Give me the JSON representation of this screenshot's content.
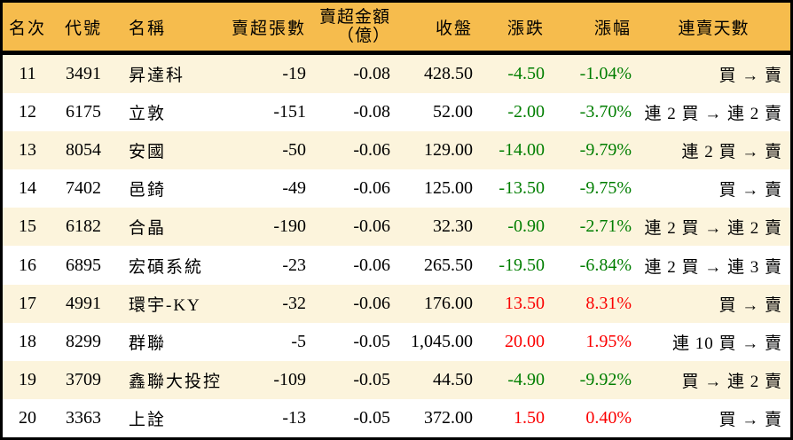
{
  "colors": {
    "header_bg": "#f6bc4d",
    "row_alt_bg": "#fcf4dc",
    "row_bg": "#ffffff",
    "up_red": "#fb0000",
    "down_green": "#007e00",
    "border_black": "#000000",
    "text_black": "#000000"
  },
  "header": {
    "rank": "名次",
    "code": "代號",
    "name": "名稱",
    "sell_volume": "賣超張數",
    "sell_amount_line1": "賣超金額",
    "sell_amount_line2": "（億）",
    "close": "收盤",
    "change": "漲跌",
    "change_pct": "漲幅",
    "streak": "連賣天數"
  },
  "chart_data": {
    "type": "table",
    "columns": [
      "名次",
      "代號",
      "名稱",
      "賣超張數",
      "賣超金額（億）",
      "收盤",
      "漲跌",
      "漲幅",
      "連賣天數"
    ],
    "rows": [
      {
        "rank": "11",
        "code": "3491",
        "name": "昇達科",
        "sell_volume": "-19",
        "sell_amount": "-0.08",
        "close": "428.50",
        "change": "-4.50",
        "change_pct": "-1.04%",
        "streak": "買 → 賣",
        "trend": "down"
      },
      {
        "rank": "12",
        "code": "6175",
        "name": "立敦",
        "sell_volume": "-151",
        "sell_amount": "-0.08",
        "close": "52.00",
        "change": "-2.00",
        "change_pct": "-3.70%",
        "streak": "連 2 買 → 連 2 賣",
        "trend": "down"
      },
      {
        "rank": "13",
        "code": "8054",
        "name": "安國",
        "sell_volume": "-50",
        "sell_amount": "-0.06",
        "close": "129.00",
        "change": "-14.00",
        "change_pct": "-9.79%",
        "streak": "連 2 買 → 賣",
        "trend": "down"
      },
      {
        "rank": "14",
        "code": "7402",
        "name": "邑錡",
        "sell_volume": "-49",
        "sell_amount": "-0.06",
        "close": "125.00",
        "change": "-13.50",
        "change_pct": "-9.75%",
        "streak": "買 → 賣",
        "trend": "down"
      },
      {
        "rank": "15",
        "code": "6182",
        "name": "合晶",
        "sell_volume": "-190",
        "sell_amount": "-0.06",
        "close": "32.30",
        "change": "-0.90",
        "change_pct": "-2.71%",
        "streak": "連 2 買 → 連 2 賣",
        "trend": "down"
      },
      {
        "rank": "16",
        "code": "6895",
        "name": "宏碩系統",
        "sell_volume": "-23",
        "sell_amount": "-0.06",
        "close": "265.50",
        "change": "-19.50",
        "change_pct": "-6.84%",
        "streak": "連 2 買 → 連 3 賣",
        "trend": "down"
      },
      {
        "rank": "17",
        "code": "4991",
        "name": "環宇-KY",
        "sell_volume": "-32",
        "sell_amount": "-0.06",
        "close": "176.00",
        "change": "13.50",
        "change_pct": "8.31%",
        "streak": "買 → 賣",
        "trend": "up"
      },
      {
        "rank": "18",
        "code": "8299",
        "name": "群聯",
        "sell_volume": "-5",
        "sell_amount": "-0.05",
        "close": "1,045.00",
        "change": "20.00",
        "change_pct": "1.95%",
        "streak": "連 10 買 → 賣",
        "trend": "up"
      },
      {
        "rank": "19",
        "code": "3709",
        "name": "鑫聯大投控",
        "sell_volume": "-109",
        "sell_amount": "-0.05",
        "close": "44.50",
        "change": "-4.90",
        "change_pct": "-9.92%",
        "streak": "買 → 連 2 賣",
        "trend": "down"
      },
      {
        "rank": "20",
        "code": "3363",
        "name": "上詮",
        "sell_volume": "-13",
        "sell_amount": "-0.05",
        "close": "372.00",
        "change": "1.50",
        "change_pct": "0.40%",
        "streak": "買 → 賣",
        "trend": "up"
      }
    ]
  }
}
